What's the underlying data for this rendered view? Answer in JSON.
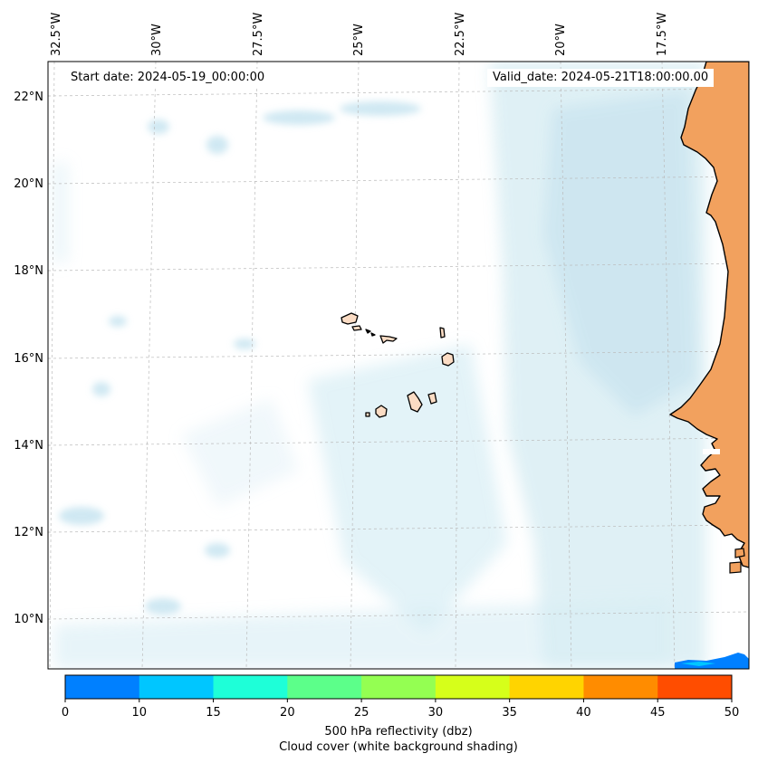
{
  "map": {
    "start_date": "Start date: 2024-05-19_00:00:00",
    "valid_date": "Valid_date: 2024-05-21T18:00:00.00",
    "lon_labels": [
      "32.5°W",
      "30°W",
      "27.5°W",
      "25°W",
      "22.5°W",
      "20°W",
      "17.5°W"
    ],
    "lat_labels": [
      "22°N",
      "20°N",
      "18°N",
      "16°N",
      "14°N",
      "12°N",
      "10°N"
    ],
    "region": "Cape Verde Islands and West African coast",
    "colors": {
      "land": "#f2a15e",
      "island": "#fbdcc4",
      "cloud": "#add8e6",
      "gridline": "#bbbbbb",
      "coastline": "#000000"
    }
  },
  "colorbar": {
    "ticks": [
      "0",
      "10",
      "15",
      "20",
      "25",
      "30",
      "35",
      "40",
      "45",
      "50"
    ],
    "colors": [
      "#0080ff",
      "#00c6ff",
      "#1effd8",
      "#5cff8a",
      "#94ff52",
      "#d6ff1a",
      "#ffd400",
      "#ff8c00",
      "#ff4d00"
    ],
    "label": "500 hPa reflectivity (dbz)",
    "sublabel": "Cloud cover (white background shading)"
  }
}
